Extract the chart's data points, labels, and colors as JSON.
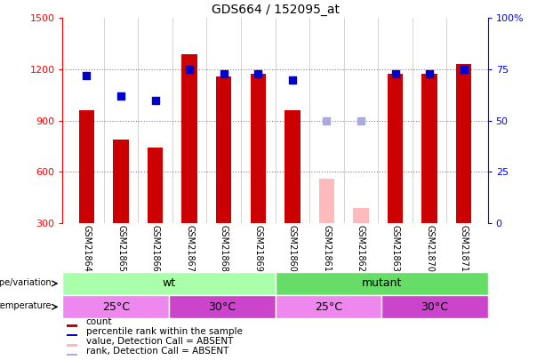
{
  "title": "GDS664 / 152095_at",
  "samples": [
    "GSM21864",
    "GSM21865",
    "GSM21866",
    "GSM21867",
    "GSM21868",
    "GSM21869",
    "GSM21860",
    "GSM21861",
    "GSM21862",
    "GSM21863",
    "GSM21870",
    "GSM21871"
  ],
  "count_values": [
    960,
    790,
    740,
    1290,
    1160,
    1175,
    960,
    null,
    null,
    1175,
    1175,
    1230
  ],
  "count_absent": [
    null,
    null,
    null,
    null,
    null,
    null,
    null,
    560,
    390,
    null,
    null,
    null
  ],
  "rank_values": [
    72,
    62,
    60,
    75,
    73,
    73,
    70,
    null,
    null,
    73,
    73,
    75
  ],
  "rank_absent": [
    null,
    null,
    null,
    null,
    null,
    null,
    null,
    50,
    50,
    null,
    null,
    null
  ],
  "bar_color": "#cc0000",
  "bar_absent_color": "#ffbbbb",
  "rank_color": "#0000cc",
  "rank_absent_color": "#aaaadd",
  "ylim_left": [
    300,
    1500
  ],
  "ylim_right": [
    0,
    100
  ],
  "yticks_left": [
    300,
    600,
    900,
    1200,
    1500
  ],
  "yticks_right": [
    0,
    25,
    50,
    75,
    100
  ],
  "color_wt": "#aaffaa",
  "color_mutant": "#66dd66",
  "color_25": "#ee88ee",
  "color_30": "#cc44cc",
  "bar_width": 0.45,
  "rank_marker_size": 35
}
